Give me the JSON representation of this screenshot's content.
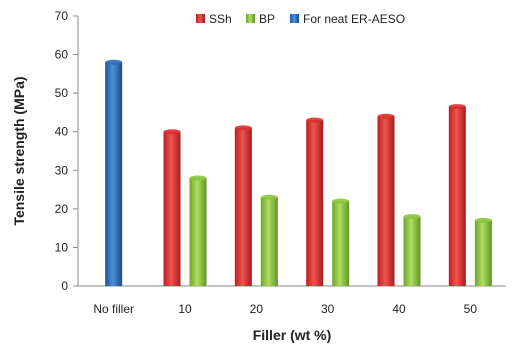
{
  "chart_data": {
    "type": "bar",
    "categories": [
      "No filler",
      "10",
      "20",
      "30",
      "40",
      "50"
    ],
    "series": [
      {
        "name": "SSh",
        "color": "#d9302e",
        "values": [
          null,
          40,
          41,
          43,
          44,
          46.5
        ]
      },
      {
        "name": "BP",
        "color": "#8cc63f",
        "values": [
          null,
          28,
          23,
          22,
          18,
          17
        ]
      },
      {
        "name": "For neat ER-AESO",
        "color": "#2f6db5",
        "values": [
          58,
          null,
          null,
          null,
          null,
          null
        ]
      }
    ],
    "xlabel": "Filler (wt %)",
    "ylabel": "Tensile strength (MPa)",
    "ylim": [
      0,
      70
    ],
    "yticks": [
      0,
      10,
      20,
      30,
      40,
      50,
      60,
      70
    ],
    "grid": false,
    "legend_position": "top-right"
  }
}
